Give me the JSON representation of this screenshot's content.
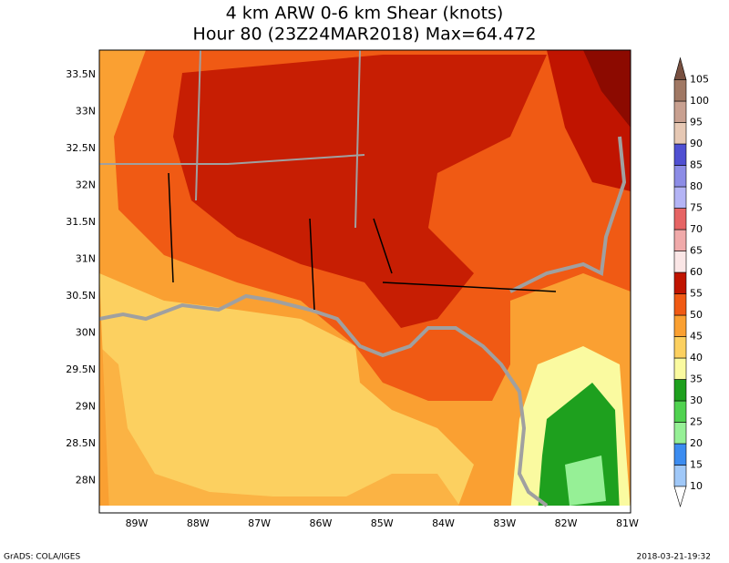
{
  "title": [
    "4 km ARW 0-6 km Shear (knots)",
    "Hour 80 (23Z24MAR2018) Max=64.472"
  ],
  "lat_labels": [
    "33.5N",
    "33N",
    "32.5N",
    "32N",
    "31.5N",
    "31N",
    "30.5N",
    "30N",
    "29.5N",
    "29N",
    "28.5N",
    "28N"
  ],
  "lon_labels": [
    "89W",
    "88W",
    "87W",
    "86W",
    "85W",
    "84W",
    "83W",
    "82W",
    "81W"
  ],
  "colorbar": {
    "ticks": [
      10,
      15,
      20,
      25,
      30,
      35,
      40,
      45,
      50,
      55,
      60,
      65,
      70,
      75,
      80,
      85,
      90,
      95,
      100,
      105
    ],
    "colors": [
      "#a0c8f8",
      "#3c8cf0",
      "#96f096",
      "#50d250",
      "#1ea01e",
      "#fafaa0",
      "#fcd060",
      "#faa032",
      "#f05a14",
      "#c01400",
      "#fae6e6",
      "#f0aaaa",
      "#e66464",
      "#b4b4f5",
      "#8c8ce6",
      "#5050d2",
      "#e6c8b4",
      "#c8a090",
      "#a07864"
    ],
    "below": "#ffffff",
    "above": "#785040"
  },
  "footer": {
    "left": "GrADS: COLA/IGES",
    "right": "2018-03-21-19:32"
  }
}
